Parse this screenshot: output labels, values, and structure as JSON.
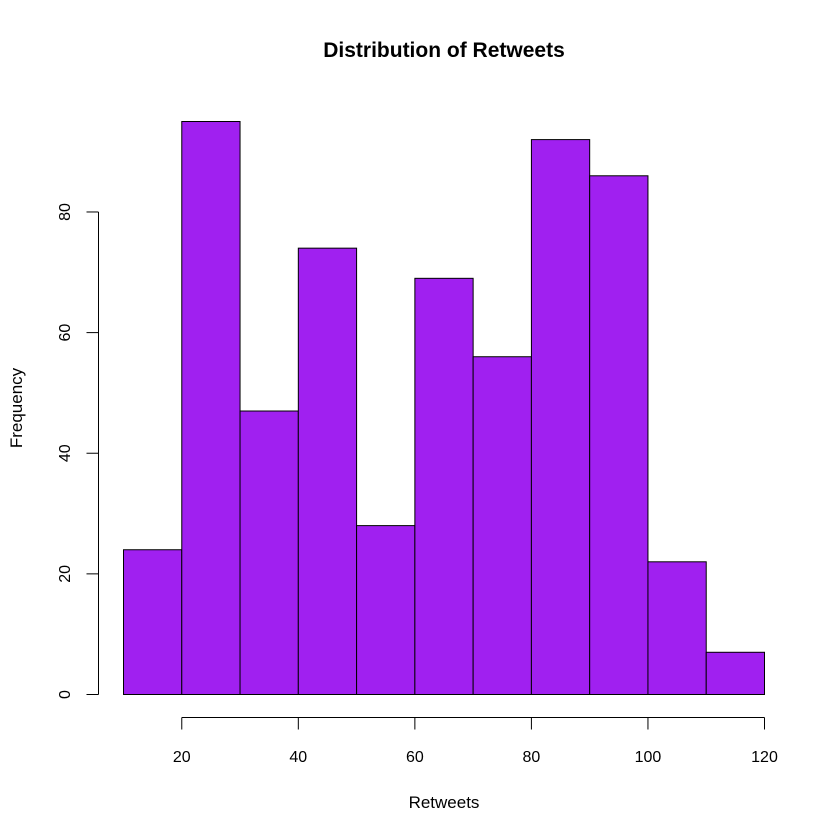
{
  "chart_data": {
    "type": "bar",
    "subtype": "histogram",
    "title": "Distribution of Retweets",
    "xlabel": "Retweets",
    "ylabel": "Frequency",
    "bins": [
      {
        "start": 10,
        "end": 20,
        "count": 24
      },
      {
        "start": 20,
        "end": 30,
        "count": 95
      },
      {
        "start": 30,
        "end": 40,
        "count": 47
      },
      {
        "start": 40,
        "end": 50,
        "count": 74
      },
      {
        "start": 50,
        "end": 60,
        "count": 28
      },
      {
        "start": 60,
        "end": 70,
        "count": 69
      },
      {
        "start": 70,
        "end": 80,
        "count": 56
      },
      {
        "start": 80,
        "end": 90,
        "count": 92
      },
      {
        "start": 90,
        "end": 100,
        "count": 86
      },
      {
        "start": 100,
        "end": 110,
        "count": 22
      },
      {
        "start": 110,
        "end": 120,
        "count": 7
      }
    ],
    "xlim": [
      10,
      120
    ],
    "ylim": [
      0,
      95
    ],
    "x_ticks": [
      20,
      40,
      60,
      80,
      100,
      120
    ],
    "y_ticks": [
      0,
      20,
      40,
      60,
      80
    ],
    "bar_color": "#a020f0",
    "grid": false,
    "legend": "none"
  }
}
